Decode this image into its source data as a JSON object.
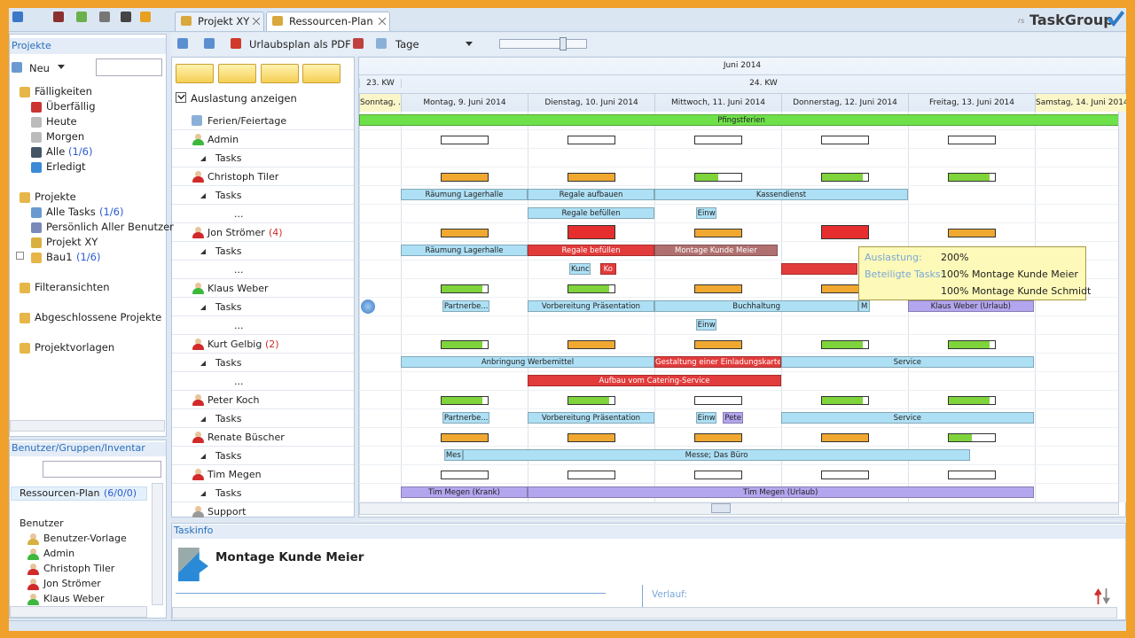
{
  "tabs": [
    "Projekt XY",
    "Ressourcen-Plan"
  ],
  "logo": {
    "prefix": "rs",
    "name": "TaskGroup"
  },
  "toolbar": {
    "pdf": "Urlaubsplan als PDF",
    "view": "Tage"
  },
  "projects_panel": {
    "title": "Projekte",
    "new": "Neu",
    "tree": [
      {
        "label": "Fälligkeiten",
        "children": [
          {
            "label": "Überfällig"
          },
          {
            "label": "Heute"
          },
          {
            "label": "Morgen"
          },
          {
            "label": "Alle",
            "count": "(1/6)"
          },
          {
            "label": "Erledigt"
          }
        ]
      },
      {
        "label": "Projekte",
        "children": [
          {
            "label": "Alle Tasks",
            "count": "(1/6)"
          },
          {
            "label": "Persönlich Aller Benutzer"
          },
          {
            "label": "Projekt XY"
          },
          {
            "label": "Bau1",
            "count": "(1/6)"
          }
        ]
      },
      {
        "label": "Filteransichten"
      },
      {
        "label": "Abgeschlossene Projekte"
      },
      {
        "label": "Projektvorlagen"
      }
    ]
  },
  "users_panel": {
    "title": "Benutzer/Gruppen/Inventar",
    "plan": {
      "label": "Ressourcen-Plan",
      "count": "(6/0/0)"
    },
    "group": "Benutzer",
    "users": [
      "Benutzer-Vorlage",
      "Admin",
      "Christoph Tiler",
      "Jon Strömer",
      "Klaus Weber"
    ]
  },
  "plan": {
    "show_load": "Auslastung anzeigen",
    "month": "Juni 2014",
    "weeks": [
      "23. KW",
      "24. KW"
    ],
    "days": [
      "Sonntag, ...",
      "Montag, 9. Juni 2014",
      "Dienstag, 10. Juni 2014",
      "Mittwoch, 11. Juni 2014",
      "Donnerstag, 12. Juni 2014",
      "Freitag, 13. Juni 2014",
      "Samstag, 14. Juni 2014"
    ],
    "rows": [
      {
        "label": "Ferien/Feiertage",
        "kind": "holiday",
        "bars": [
          {
            "label": "Pfingstferien",
            "start": 0,
            "end": 6.7,
            "color": "#6ee04a"
          }
        ]
      },
      {
        "label": "Admin",
        "kind": "person",
        "icon": "#3cb83c",
        "load": [
          0,
          0,
          0,
          0,
          0
        ]
      },
      {
        "label": "Tasks",
        "kind": "tasks"
      },
      {
        "label": "Christoph Tiler",
        "kind": "person",
        "icon": "#d02a2a",
        "load": [
          100,
          100,
          50,
          90,
          90
        ]
      },
      {
        "label": "Tasks",
        "kind": "tasks",
        "bars": [
          {
            "label": "Räumung Lagerhalle",
            "start": 1,
            "end": 2,
            "color": "#aee0f5"
          },
          {
            "label": "Regale aufbauen",
            "start": 2,
            "end": 3,
            "color": "#aee0f5"
          },
          {
            "label": "Kassendienst",
            "start": 3,
            "end": 5,
            "color": "#aee0f5"
          }
        ]
      },
      {
        "label": "...",
        "kind": "more",
        "bars": [
          {
            "label": "Regale befüllen",
            "start": 2,
            "end": 3,
            "color": "#aee0f5"
          },
          {
            "label": "Einw",
            "start": 3.33,
            "end": 3.49,
            "color": "#aee0f5"
          }
        ]
      },
      {
        "label": "Jon Strömer",
        "count": "(4)",
        "kind": "person",
        "icon": "#d02a2a",
        "load": [
          100,
          130,
          100,
          200,
          100
        ]
      },
      {
        "label": "Tasks",
        "kind": "tasks",
        "bars": [
          {
            "label": "Räumung Lagerhalle",
            "start": 1,
            "end": 2,
            "color": "#aee0f5"
          },
          {
            "label": "Regale befüllen",
            "start": 2,
            "end": 3,
            "color": "#e23b3b"
          },
          {
            "label": "Montage Kunde Meier",
            "start": 3,
            "end": 3.97,
            "color": "#b07070"
          }
        ]
      },
      {
        "label": "...",
        "kind": "more",
        "bars": [
          {
            "label": "Kunc",
            "start": 2.33,
            "end": 2.5,
            "color": "#aee0f5"
          },
          {
            "label": "Ko",
            "start": 2.57,
            "end": 2.7,
            "color": "#e23b3b"
          },
          {
            "start": 4,
            "end": 4.6,
            "color": "#e23b3b"
          }
        ]
      },
      {
        "label": "Klaus Weber",
        "kind": "person",
        "icon": "#3cb83c",
        "load": [
          90,
          90,
          100,
          100,
          100
        ]
      },
      {
        "label": "Tasks",
        "kind": "tasks",
        "bars": [
          {
            "label": "Partnerbe...",
            "start": 1.33,
            "end": 1.7,
            "color": "#aee0f5"
          },
          {
            "label": "Vorbereitung Präsentation",
            "start": 2,
            "end": 3,
            "color": "#aee0f5"
          },
          {
            "label": "Buchhaltung",
            "start": 3,
            "end": 4.61,
            "color": "#aee0f5"
          },
          {
            "label": "M",
            "start": 4.61,
            "end": 4.7,
            "color": "#aee0f5"
          },
          {
            "label": "Klaus Weber (Urlaub)",
            "start": 5,
            "end": 5.99,
            "color": "#b4a6ee"
          }
        ]
      },
      {
        "label": "...",
        "kind": "more",
        "bars": [
          {
            "label": "Einw",
            "start": 3.33,
            "end": 3.49,
            "color": "#aee0f5"
          }
        ]
      },
      {
        "label": "Kurt Gelbig",
        "count": "(2)",
        "kind": "person",
        "icon": "#d02a2a",
        "load": [
          90,
          100,
          100,
          90,
          90
        ]
      },
      {
        "label": "Tasks",
        "kind": "tasks",
        "bars": [
          {
            "label": "Anbringung Werbemittel",
            "start": 1,
            "end": 3,
            "color": "#aee0f5"
          },
          {
            "label": "Gestaltung einer Einladungskarte",
            "start": 3,
            "end": 4,
            "color": "#e23b3b"
          },
          {
            "label": "Service",
            "start": 4,
            "end": 5.99,
            "color": "#aee0f5"
          }
        ]
      },
      {
        "label": "...",
        "kind": "more",
        "bars": [
          {
            "label": "Aufbau vom Catering-Service",
            "start": 2,
            "end": 4,
            "color": "#e23b3b"
          }
        ]
      },
      {
        "label": "Peter Koch",
        "kind": "person",
        "icon": "#d02a2a",
        "load": [
          90,
          90,
          0,
          90,
          90
        ]
      },
      {
        "label": "Tasks",
        "kind": "tasks",
        "bars": [
          {
            "label": "Partnerbe...",
            "start": 1.33,
            "end": 1.7,
            "color": "#aee0f5"
          },
          {
            "label": "Vorbereitung Präsentation",
            "start": 2,
            "end": 3,
            "color": "#aee0f5"
          },
          {
            "label": "Einw",
            "start": 3.33,
            "end": 3.49,
            "color": "#aee0f5"
          },
          {
            "label": "Pete",
            "start": 3.54,
            "end": 3.7,
            "color": "#b4a6ee"
          },
          {
            "label": "Service",
            "start": 4,
            "end": 5.99,
            "color": "#aee0f5"
          }
        ]
      },
      {
        "label": "Renate Büscher",
        "kind": "person",
        "icon": "#d02a2a",
        "load": [
          100,
          100,
          100,
          100,
          50
        ]
      },
      {
        "label": "Tasks",
        "kind": "tasks",
        "bars": [
          {
            "label": "Mes",
            "start": 1.34,
            "end": 1.49,
            "color": "#aee0f5"
          },
          {
            "label": "Messe; Das Büro",
            "start": 1.49,
            "end": 5.49,
            "color": "#aee0f5"
          }
        ]
      },
      {
        "label": "Tim Megen",
        "kind": "person",
        "icon": "#d02a2a",
        "load": [
          0,
          0,
          0,
          0,
          0
        ]
      },
      {
        "label": "Tasks",
        "kind": "tasks",
        "bars": [
          {
            "label": "Tim Megen (Krank)",
            "start": 1,
            "end": 2,
            "color": "#b4a6ee"
          },
          {
            "label": "Tim Megen (Urlaub)",
            "start": 2,
            "end": 5.99,
            "color": "#b4a6ee"
          }
        ]
      },
      {
        "label": "Support",
        "kind": "person",
        "icon": "#999999"
      }
    ],
    "tooltip": {
      "load_label": "Auslastung:",
      "load": "200%",
      "tasks_label": "Beteiligte Tasks:",
      "tasks": [
        "100% Montage Kunde Meier",
        "100% Montage Kunde Schmidt"
      ]
    }
  },
  "taskinfo": {
    "title": "Taskinfo",
    "task": "Montage Kunde Meier",
    "history": "Verlauf:"
  }
}
